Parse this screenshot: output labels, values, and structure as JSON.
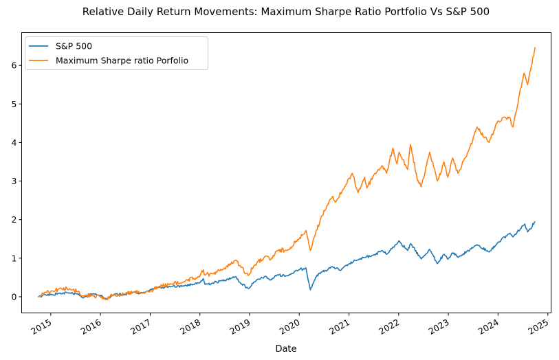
{
  "chart_data": {
    "type": "line",
    "title": "Relative Daily Return Movements: Maximum Sharpe Ratio Portfolio Vs S&P 500",
    "xlabel": "Date",
    "ylabel": "",
    "xlim": [
      "2014-06-01",
      "2025-01-25"
    ],
    "ylim": [
      -0.42,
      6.85
    ],
    "x_ticks": [
      "2015",
      "2016",
      "2017",
      "2018",
      "2019",
      "2020",
      "2021",
      "2022",
      "2023",
      "2024",
      "2025"
    ],
    "y_ticks": [
      0,
      1,
      2,
      3,
      4,
      5,
      6
    ],
    "grid": false,
    "legend_position": "top-left",
    "series": [
      {
        "name": "S&P 500",
        "color": "#1f77b4",
        "points": [
          [
            "2014-09-30",
            0.0
          ],
          [
            "2014-11-15",
            0.06
          ],
          [
            "2015-01-15",
            0.05
          ],
          [
            "2015-03-01",
            0.09
          ],
          [
            "2015-05-20",
            0.1
          ],
          [
            "2015-07-15",
            0.08
          ],
          [
            "2015-08-25",
            -0.03
          ],
          [
            "2015-10-01",
            0.02
          ],
          [
            "2015-11-01",
            0.07
          ],
          [
            "2015-12-31",
            0.04
          ],
          [
            "2016-02-11",
            -0.06
          ],
          [
            "2016-04-20",
            0.08
          ],
          [
            "2016-06-27",
            0.05
          ],
          [
            "2016-09-01",
            0.12
          ],
          [
            "2016-11-04",
            0.1
          ],
          [
            "2016-12-31",
            0.18
          ],
          [
            "2017-03-01",
            0.24
          ],
          [
            "2017-06-01",
            0.26
          ],
          [
            "2017-09-01",
            0.28
          ],
          [
            "2017-12-31",
            0.36
          ],
          [
            "2018-01-26",
            0.47
          ],
          [
            "2018-02-08",
            0.32
          ],
          [
            "2018-04-01",
            0.35
          ],
          [
            "2018-06-01",
            0.41
          ],
          [
            "2018-09-20",
            0.52
          ],
          [
            "2018-10-25",
            0.36
          ],
          [
            "2018-12-24",
            0.21
          ],
          [
            "2019-02-01",
            0.38
          ],
          [
            "2019-04-30",
            0.53
          ],
          [
            "2019-06-03",
            0.43
          ],
          [
            "2019-07-26",
            0.57
          ],
          [
            "2019-10-01",
            0.54
          ],
          [
            "2019-12-31",
            0.7
          ],
          [
            "2020-02-19",
            0.75
          ],
          [
            "2020-03-23",
            0.18
          ],
          [
            "2020-04-30",
            0.5
          ],
          [
            "2020-06-08",
            0.63
          ],
          [
            "2020-09-02",
            0.78
          ],
          [
            "2020-10-30",
            0.68
          ],
          [
            "2020-12-31",
            0.85
          ],
          [
            "2021-03-01",
            0.95
          ],
          [
            "2021-06-30",
            1.08
          ],
          [
            "2021-09-02",
            1.2
          ],
          [
            "2021-10-04",
            1.1
          ],
          [
            "2021-12-31",
            1.43
          ],
          [
            "2022-01-03",
            1.45
          ],
          [
            "2022-03-08",
            1.2
          ],
          [
            "2022-03-29",
            1.38
          ],
          [
            "2022-06-16",
            0.98
          ],
          [
            "2022-08-16",
            1.23
          ],
          [
            "2022-10-12",
            0.86
          ],
          [
            "2022-11-30",
            1.1
          ],
          [
            "2022-12-28",
            0.97
          ],
          [
            "2023-02-02",
            1.14
          ],
          [
            "2023-03-13",
            1.02
          ],
          [
            "2023-07-31",
            1.35
          ],
          [
            "2023-10-27",
            1.16
          ],
          [
            "2023-12-29",
            1.4
          ],
          [
            "2024-03-28",
            1.65
          ],
          [
            "2024-04-19",
            1.55
          ],
          [
            "2024-07-16",
            1.89
          ],
          [
            "2024-08-05",
            1.68
          ],
          [
            "2024-09-30",
            1.95
          ]
        ]
      },
      {
        "name": "Maximum Sharpe ratio Porfolio",
        "color": "#ff7f0e",
        "points": [
          [
            "2014-09-30",
            0.0
          ],
          [
            "2014-11-20",
            0.12
          ],
          [
            "2015-01-15",
            0.15
          ],
          [
            "2015-03-15",
            0.22
          ],
          [
            "2015-06-01",
            0.18
          ],
          [
            "2015-07-20",
            0.14
          ],
          [
            "2015-08-25",
            0.02
          ],
          [
            "2015-11-01",
            0.04
          ],
          [
            "2015-12-31",
            0.0
          ],
          [
            "2016-02-11",
            -0.07
          ],
          [
            "2016-04-01",
            0.05
          ],
          [
            "2016-06-27",
            0.07
          ],
          [
            "2016-09-01",
            0.12
          ],
          [
            "2016-11-04",
            0.09
          ],
          [
            "2016-12-31",
            0.14
          ],
          [
            "2017-03-01",
            0.25
          ],
          [
            "2017-06-01",
            0.33
          ],
          [
            "2017-09-01",
            0.38
          ],
          [
            "2017-12-31",
            0.52
          ],
          [
            "2018-01-26",
            0.7
          ],
          [
            "2018-02-08",
            0.56
          ],
          [
            "2018-04-01",
            0.6
          ],
          [
            "2018-06-15",
            0.7
          ],
          [
            "2018-09-25",
            0.95
          ],
          [
            "2018-10-25",
            0.8
          ],
          [
            "2018-12-24",
            0.55
          ],
          [
            "2019-02-01",
            0.8
          ],
          [
            "2019-04-30",
            1.05
          ],
          [
            "2019-06-03",
            0.95
          ],
          [
            "2019-07-26",
            1.2
          ],
          [
            "2019-10-01",
            1.2
          ],
          [
            "2019-12-31",
            1.5
          ],
          [
            "2020-02-19",
            1.72
          ],
          [
            "2020-03-23",
            1.2
          ],
          [
            "2020-04-30",
            1.65
          ],
          [
            "2020-06-08",
            2.05
          ],
          [
            "2020-08-31",
            2.6
          ],
          [
            "2020-09-23",
            2.45
          ],
          [
            "2020-11-30",
            2.85
          ],
          [
            "2021-01-26",
            3.2
          ],
          [
            "2021-03-08",
            2.7
          ],
          [
            "2021-04-26",
            3.1
          ],
          [
            "2021-05-12",
            2.82
          ],
          [
            "2021-06-30",
            3.15
          ],
          [
            "2021-09-02",
            3.4
          ],
          [
            "2021-10-04",
            3.2
          ],
          [
            "2021-11-19",
            3.85
          ],
          [
            "2021-12-20",
            3.45
          ],
          [
            "2022-01-04",
            3.75
          ],
          [
            "2022-03-08",
            3.3
          ],
          [
            "2022-03-29",
            3.95
          ],
          [
            "2022-05-20",
            3.0
          ],
          [
            "2022-06-16",
            2.85
          ],
          [
            "2022-08-16",
            3.75
          ],
          [
            "2022-10-12",
            3.0
          ],
          [
            "2022-11-30",
            3.5
          ],
          [
            "2022-12-28",
            3.1
          ],
          [
            "2023-02-02",
            3.6
          ],
          [
            "2023-03-13",
            3.2
          ],
          [
            "2023-05-31",
            3.8
          ],
          [
            "2023-07-31",
            4.4
          ],
          [
            "2023-10-27",
            4.0
          ],
          [
            "2023-12-29",
            4.55
          ],
          [
            "2024-03-28",
            4.65
          ],
          [
            "2024-04-19",
            4.4
          ],
          [
            "2024-07-10",
            5.8
          ],
          [
            "2024-08-05",
            5.5
          ],
          [
            "2024-09-30",
            6.47
          ]
        ]
      }
    ]
  }
}
